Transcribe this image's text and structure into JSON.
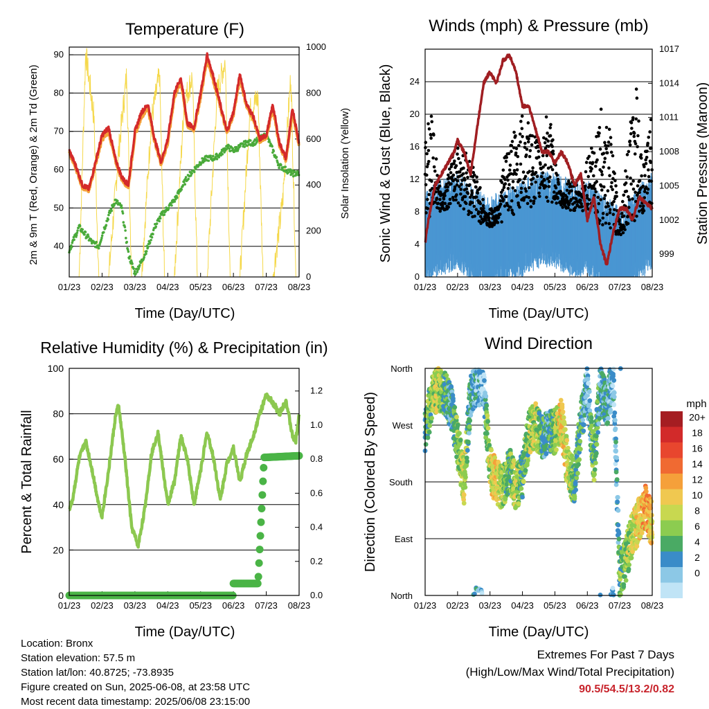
{
  "panels": {
    "temperature": {
      "title": "Temperature (F)",
      "ylabel": "2m & 9m T (Red, Orange) & 2m Td (Green)",
      "y2label": "Solar Insolation (Yellow)",
      "xlabel": "Time (Day/UTC)"
    },
    "wind": {
      "title": "Winds (mph) & Pressure (mb)",
      "ylabel": "Sonic Wind & Gust (Blue, Black)",
      "y2label": "Station Pressure (Maroon)",
      "xlabel": "Time (Day/UTC)"
    },
    "humidity": {
      "title": "Relative Humidity (%) & Precipitation (in)",
      "ylabel": "Percent & Total Rainfall",
      "xlabel": "Time (Day/UTC)"
    },
    "direction": {
      "title": "Wind Direction",
      "ylabel": "Direction (Colored By Speed)",
      "xlabel": "Time (Day/UTC)",
      "legend_title": "mph"
    }
  },
  "footer": {
    "location": "Location: Bronx",
    "elevation": "Station elevation: 57.5 m",
    "latlon": "Station lat/lon: 40.8725; -73.8935",
    "created": "Figure created on Sun, 2025-06-08, at 23:58 UTC",
    "recent": "Most recent data timestamp: 2025/06/08 23:15:00",
    "extremes_title": "Extremes For Past 7 Days",
    "extremes_sub": "(High/Low/Max Wind/Total Precipitation)",
    "extremes_values": "90.5/54.5/13.2/0.82"
  },
  "colors": {
    "temp_2m": "#d42a2a",
    "temp_9m": "#f5a23a",
    "dewpoint": "#4aaa3a",
    "solar": "#f5d84a",
    "wind": "#4a96d2",
    "gust": "#000000",
    "pressure": "#a01e22",
    "rh": "#8cc850",
    "precip": "#4ab446",
    "extremes": "#c8242c"
  },
  "chart_data": [
    {
      "type": "line",
      "title": "Temperature (F)",
      "xlabel": "Time (Day/UTC)",
      "ylabel": "2m & 9m T (Red, Orange) & 2m Td (Green)",
      "y2label": "Solar Insolation (Yellow)",
      "x_ticks": [
        "01/23",
        "02/23",
        "03/23",
        "04/23",
        "05/23",
        "06/23",
        "07/23",
        "08/23"
      ],
      "ylim": [
        32,
        92
      ],
      "y_ticks": [
        40,
        50,
        60,
        70,
        80,
        90
      ],
      "y2lim": [
        0,
        1000
      ],
      "y2_ticks": [
        0,
        200,
        400,
        600,
        800,
        1000
      ],
      "grid": true,
      "series": [
        {
          "name": "2m T",
          "axis": "left",
          "x": [
            0,
            0.2,
            0.4,
            0.6,
            0.8,
            1.0,
            1.2,
            1.4,
            1.6,
            1.8,
            2.0,
            2.2,
            2.4,
            2.6,
            2.8,
            3.0,
            3.2,
            3.4,
            3.6,
            3.8,
            4.0,
            4.2,
            4.4,
            4.6,
            4.8,
            5.0,
            5.2,
            5.4,
            5.6,
            5.8,
            6.0,
            6.2,
            6.4,
            6.6,
            6.8,
            7.0
          ],
          "y": [
            65,
            61,
            56,
            55,
            62,
            69,
            71,
            63,
            58,
            56,
            70,
            75,
            77,
            68,
            62,
            68,
            80,
            84,
            72,
            71,
            80,
            90,
            84,
            77,
            70,
            75,
            85,
            77,
            74,
            68,
            69,
            77,
            67,
            63,
            76,
            67
          ]
        },
        {
          "name": "9m T",
          "axis": "left",
          "x": [
            0,
            0.2,
            0.4,
            0.6,
            0.8,
            1.0,
            1.2,
            1.4,
            1.6,
            1.8,
            2.0,
            2.2,
            2.4,
            2.6,
            2.8,
            3.0,
            3.2,
            3.4,
            3.6,
            3.8,
            4.0,
            4.2,
            4.4,
            4.6,
            4.8,
            5.0,
            5.2,
            5.4,
            5.6,
            5.8,
            6.0,
            6.2,
            6.4,
            6.6,
            6.8,
            7.0
          ],
          "y": [
            64.5,
            60.5,
            55.5,
            54.5,
            61.5,
            68,
            70,
            62.5,
            57.5,
            55.5,
            69,
            74,
            76,
            67.5,
            61.5,
            67,
            79,
            83,
            71.5,
            70.5,
            79,
            89,
            83,
            76.5,
            69.5,
            74.5,
            84,
            76.5,
            73.5,
            67.5,
            68.5,
            76,
            66.5,
            62.5,
            75,
            66.5
          ]
        },
        {
          "name": "2m Td",
          "axis": "left",
          "x": [
            0,
            0.15,
            0.3,
            0.5,
            0.7,
            0.9,
            1.0,
            1.2,
            1.4,
            1.6,
            1.8,
            2.0,
            2.2,
            2.4,
            2.6,
            2.8,
            3.0,
            3.2,
            3.4,
            3.6,
            3.8,
            4.0,
            4.2,
            4.4,
            4.6,
            4.8,
            5.0,
            5.2,
            5.4,
            5.6,
            5.8,
            6.0,
            6.2,
            6.4,
            6.6,
            6.8,
            7.0
          ],
          "y": [
            39,
            42,
            45,
            43,
            41,
            40,
            43,
            48,
            52,
            50,
            38,
            33,
            36,
            40,
            45,
            48,
            50,
            52,
            55,
            58,
            60,
            62,
            63,
            63,
            64,
            66,
            65,
            66,
            67,
            67,
            68,
            69,
            65,
            61,
            60,
            59,
            59
          ]
        },
        {
          "name": "Solar Insolation",
          "axis": "right",
          "x": [
            0,
            0.3,
            0.5,
            0.75,
            0.9,
            1.2,
            1.5,
            1.75,
            1.9,
            2.2,
            2.5,
            2.75,
            2.9,
            3.2,
            3.5,
            3.75,
            3.9,
            4.2,
            4.5,
            4.75,
            4.9,
            5.2,
            5.5,
            5.75,
            5.9,
            6.2,
            6.5,
            6.75,
            6.9,
            7.0
          ],
          "y": [
            0,
            0,
            975,
            700,
            0,
            0,
            540,
            880,
            0,
            0,
            680,
            880,
            0,
            0,
            760,
            870,
            0,
            0,
            800,
            940,
            0,
            0,
            720,
            780,
            0,
            0,
            330,
            880,
            0,
            0
          ]
        }
      ]
    },
    {
      "type": "scatter",
      "title": "Winds (mph) & Pressure (mb)",
      "xlabel": "Time (Day/UTC)",
      "ylabel": "Sonic Wind & Gust (Blue, Black)",
      "y2label": "Station Pressure (Maroon)",
      "x_ticks": [
        "01/23",
        "02/23",
        "03/23",
        "04/23",
        "05/23",
        "06/23",
        "07/23",
        "08/23"
      ],
      "ylim": [
        0,
        28
      ],
      "y_ticks": [
        0,
        4,
        8,
        12,
        16,
        20,
        24
      ],
      "y2lim": [
        997,
        1017
      ],
      "y2_ticks": [
        999,
        1002,
        1005,
        1008,
        1011,
        1014,
        1017
      ],
      "grid": true,
      "series": [
        {
          "name": "Sonic Wind (mean)",
          "axis": "left",
          "x": [
            0,
            0.5,
            1.0,
            1.5,
            2.0,
            2.5,
            3.0,
            3.5,
            4.0,
            4.5,
            5.0,
            5.5,
            6.0,
            6.5,
            7.0
          ],
          "y": [
            5,
            6,
            7,
            5,
            4,
            5,
            6,
            7,
            7,
            6,
            6,
            4,
            3,
            5,
            7
          ]
        },
        {
          "name": "Gust",
          "axis": "left",
          "x": [
            0,
            0.2,
            0.5,
            1.0,
            1.5,
            1.9,
            2.2,
            2.5,
            3.0,
            3.5,
            3.8,
            4.2,
            4.5,
            4.8,
            5.0,
            5.4,
            5.7,
            6.0,
            6.5,
            6.7,
            7.0
          ],
          "y": [
            18,
            20,
            10,
            17,
            14,
            8,
            9,
            16,
            20,
            17,
            21,
            9,
            13,
            10,
            15,
            21,
            18,
            7,
            25,
            13,
            21
          ]
        },
        {
          "name": "Station Pressure",
          "axis": "right",
          "x": [
            0,
            0.1,
            0.3,
            0.5,
            0.7,
            0.9,
            1.0,
            1.2,
            1.4,
            1.6,
            1.8,
            2.0,
            2.2,
            2.4,
            2.6,
            2.8,
            3.0,
            3.2,
            3.4,
            3.6,
            3.8,
            4.0,
            4.2,
            4.4,
            4.6,
            4.8,
            5.0,
            5.2,
            5.4,
            5.6,
            5.8,
            6.0,
            6.2,
            6.4,
            6.5,
            6.6,
            6.8,
            7.0
          ],
          "y": [
            1000,
            1002,
            1005,
            1006,
            1007,
            1008,
            1009,
            1008,
            1006,
            1010,
            1014,
            1015,
            1014,
            1016,
            1016.5,
            1015,
            1012,
            1012,
            1010,
            1008,
            1008,
            1007,
            1008,
            1007,
            1005,
            1006,
            1002,
            1004,
            1000,
            998,
            1001,
            1003,
            1003,
            1002,
            1003,
            1004,
            1003.5,
            1003
          ]
        }
      ]
    },
    {
      "type": "line",
      "title": "Relative Humidity (%) & Precipitation (in)",
      "xlabel": "Time (Day/UTC)",
      "ylabel": "Percent & Total Rainfall",
      "x_ticks": [
        "01/23",
        "02/23",
        "03/23",
        "04/23",
        "05/23",
        "06/23",
        "07/23",
        "08/23"
      ],
      "ylim": [
        0,
        100
      ],
      "y_ticks": [
        0,
        20,
        40,
        60,
        80,
        100
      ],
      "y2lim": [
        0,
        1.333
      ],
      "y2_ticks": [
        0.0,
        0.2,
        0.4,
        0.6,
        0.8,
        1.0,
        1.2
      ],
      "grid": true,
      "series": [
        {
          "name": "Relative Humidity",
          "axis": "left",
          "x": [
            0,
            0.1,
            0.3,
            0.5,
            0.7,
            0.9,
            1.0,
            1.2,
            1.4,
            1.5,
            1.7,
            1.9,
            2.1,
            2.3,
            2.5,
            2.7,
            3.0,
            3.2,
            3.4,
            3.6,
            3.8,
            4.0,
            4.2,
            4.4,
            4.6,
            4.8,
            5.0,
            5.2,
            5.4,
            5.6,
            5.8,
            6.0,
            6.2,
            6.4,
            6.6,
            6.8,
            6.9,
            7.0
          ],
          "y": [
            38,
            42,
            60,
            68,
            55,
            40,
            35,
            55,
            78,
            84,
            60,
            30,
            22,
            38,
            62,
            72,
            40,
            50,
            70,
            60,
            40,
            55,
            72,
            60,
            42,
            58,
            65,
            50,
            62,
            70,
            80,
            88,
            85,
            80,
            86,
            70,
            68,
            80
          ]
        },
        {
          "name": "Total Precipitation",
          "axis": "right",
          "x": [
            0,
            1,
            2,
            3,
            4,
            5,
            5.0,
            5.6,
            5.7,
            5.8,
            5.9,
            6.0,
            7.0
          ],
          "y": [
            0,
            0,
            0,
            0,
            0,
            0,
            0.07,
            0.07,
            0.08,
            0.5,
            0.78,
            0.81,
            0.82
          ]
        }
      ]
    },
    {
      "type": "scatter",
      "title": "Wind Direction",
      "xlabel": "Time (Day/UTC)",
      "ylabel": "Direction (Colored By Speed)",
      "x_ticks": [
        "01/23",
        "02/23",
        "03/23",
        "04/23",
        "05/23",
        "06/23",
        "07/23",
        "08/23"
      ],
      "y_ticks": [
        "North",
        "East",
        "South",
        "West",
        "North"
      ],
      "ylim_deg": [
        0,
        360
      ],
      "grid": true,
      "legend": {
        "title": "mph",
        "labels": [
          "20+",
          "18",
          "16",
          "14",
          "12",
          "10",
          "8",
          "6",
          "4",
          "2",
          "0"
        ],
        "colors": [
          "#a51d22",
          "#d22a2a",
          "#e8462e",
          "#f06a32",
          "#f5a03a",
          "#f0c850",
          "#c8d850",
          "#8ccc50",
          "#4aaa64",
          "#3a8cc8",
          "#8cc8e6",
          "#c0e4f6"
        ]
      },
      "series": [
        {
          "name": "Direction",
          "x": [
            0,
            0.2,
            0.4,
            0.6,
            0.8,
            1.0,
            1.2,
            1.4,
            1.6,
            1.8,
            2.0,
            2.2,
            2.4,
            2.6,
            2.8,
            3.0,
            3.2,
            3.4,
            3.6,
            3.8,
            4.0,
            4.2,
            4.4,
            4.6,
            4.8,
            5.0,
            5.2,
            5.4,
            5.6,
            5.8,
            6.0,
            6.2,
            6.4,
            6.6,
            6.8,
            7.0
          ],
          "y": [
            260,
            310,
            330,
            320,
            300,
            240,
            180,
            320,
            340,
            330,
            200,
            180,
            170,
            200,
            170,
            190,
            260,
            270,
            250,
            260,
            260,
            280,
            200,
            180,
            270,
            330,
            210,
            330,
            300,
            350,
            30,
            60,
            100,
            120,
            140,
            110
          ],
          "speed": [
            6,
            8,
            10,
            6,
            4,
            8,
            10,
            4,
            3,
            2,
            10,
            12,
            8,
            6,
            10,
            6,
            8,
            10,
            6,
            4,
            8,
            12,
            10,
            6,
            6,
            2,
            8,
            4,
            4,
            2,
            6,
            8,
            10,
            12,
            14,
            12
          ]
        }
      ]
    }
  ]
}
